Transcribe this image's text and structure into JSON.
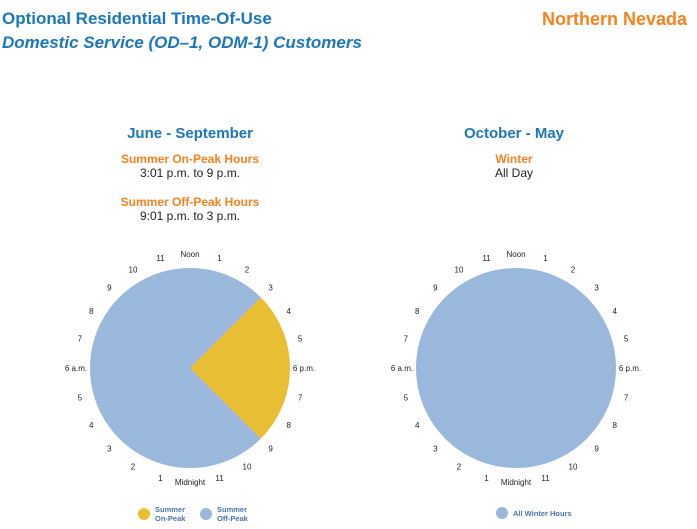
{
  "header": {
    "title_line1": "Optional Residential Time-Of-Use",
    "title_line2": "Domestic Service (OD–1, ODM-1) Customers",
    "region": "Northern Nevada"
  },
  "colors": {
    "title_blue": "#1b76bc",
    "accent_orange": "#f5821f",
    "on_peak": "#e8bf33",
    "off_peak": "#9ab8dc"
  },
  "summer": {
    "period": "June - September",
    "on_peak_label": "Summer On-Peak Hours",
    "on_peak_hours": "3:01 p.m. to 9 p.m.",
    "off_peak_label": "Summer Off-Peak Hours",
    "off_peak_hours": "9:01 p.m. to 3 p.m."
  },
  "winter": {
    "period": "October - May",
    "label": "Winter",
    "hours": "All Day"
  },
  "clock_labels": {
    "noon": "Noon",
    "h1": "1",
    "h2": "2",
    "h3": "3",
    "h4": "4",
    "h5": "5",
    "pm6": "6 p.m.",
    "h7": "7",
    "h8": "8",
    "h9": "9",
    "h10": "10",
    "h11": "11",
    "midnight": "Midnight",
    "am6": "6 a.m."
  },
  "legend": {
    "summer_on_peak_line1": "Summer",
    "summer_on_peak_line2": "On-Peak",
    "summer_off_peak_line1": "Summer",
    "summer_off_peak_line2": "Off-Peak",
    "winter_all": "All Winter Hours"
  },
  "chart_data": [
    {
      "type": "pie",
      "title": "June - September",
      "slices": [
        {
          "label": "Summer On-Peak",
          "start_hour": 15,
          "end_hour": 21,
          "hours": 6,
          "color": "#e8bf33"
        },
        {
          "label": "Summer Off-Peak",
          "start_hour": 21,
          "end_hour": 15,
          "hours": 18,
          "color": "#9ab8dc"
        }
      ],
      "clock_top": "Noon",
      "clock_bottom": "Midnight"
    },
    {
      "type": "pie",
      "title": "October - May",
      "slices": [
        {
          "label": "All Winter Hours",
          "start_hour": 0,
          "end_hour": 24,
          "hours": 24,
          "color": "#9ab8dc"
        }
      ],
      "clock_top": "Noon",
      "clock_bottom": "Midnight"
    }
  ]
}
